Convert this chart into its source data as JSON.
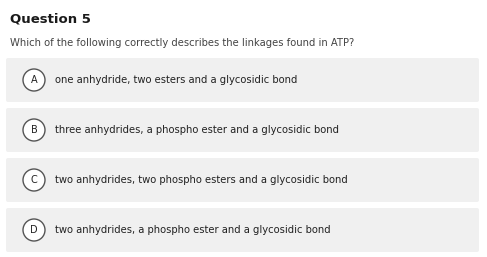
{
  "title": "Question 5",
  "question": "Which of the following correctly describes the linkages found in ATP?",
  "options": [
    {
      "label": "A",
      "text": "one anhydride, two esters and a glycosidic bond"
    },
    {
      "label": "B",
      "text": "three anhydrides, a phospho ester and a glycosidic bond"
    },
    {
      "label": "C",
      "text": "two anhydrides, two phospho esters and a glycosidic bond"
    },
    {
      "label": "D",
      "text": "two anhydrides, a phospho ester and a glycosidic bond"
    }
  ],
  "bg_color": "#ffffff",
  "option_bg_color": "#f0f0f0",
  "title_color": "#1a1a1a",
  "question_color": "#444444",
  "option_text_color": "#222222",
  "circle_edge_color": "#555555",
  "circle_face_color": "#ffffff",
  "title_fontsize": 9.5,
  "question_fontsize": 7.2,
  "option_fontsize": 7.2,
  "label_fontsize": 7.0
}
